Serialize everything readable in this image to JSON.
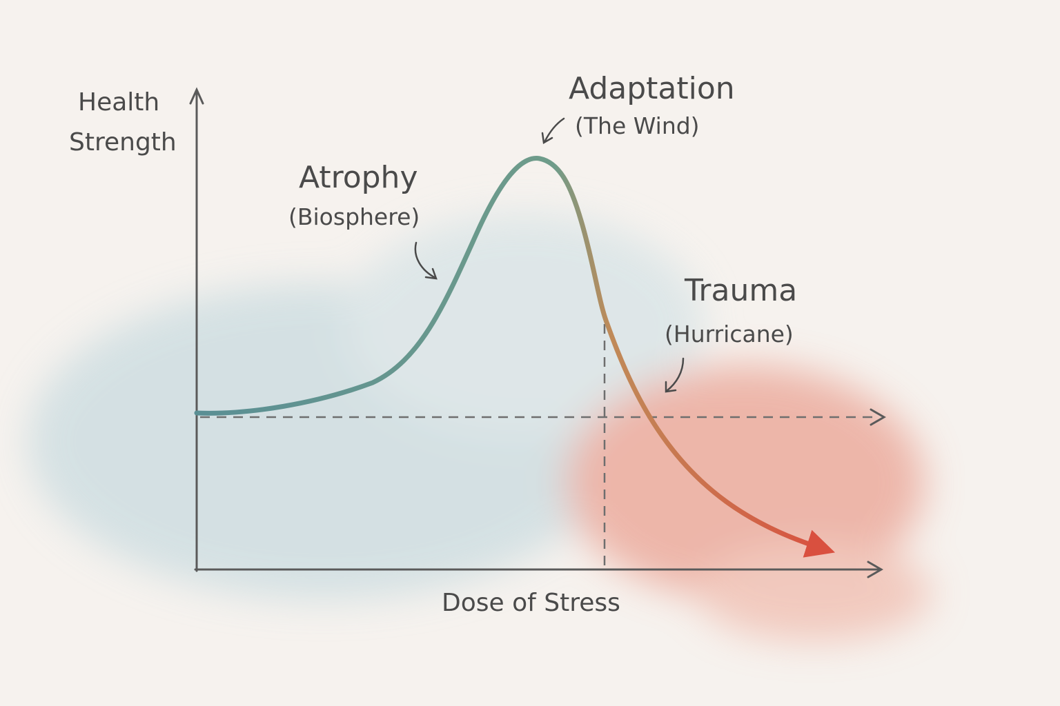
{
  "axes": {
    "y_label_line1": "Health",
    "y_label_line2": "Strength",
    "x_label": "Dose of Stress"
  },
  "annotations": {
    "adaptation": {
      "title": "Adaptation",
      "subtitle": "(The Wind)"
    },
    "atrophy": {
      "title": "Atrophy",
      "subtitle": "(Biosphere)"
    },
    "trauma": {
      "title": "Trauma",
      "subtitle": "(Hurricane)"
    }
  },
  "colors": {
    "curve_start": "#5a8f94",
    "curve_mid": "#6f9c8a",
    "curve_end": "#d9503f",
    "wash_blue": "#c9dbe0",
    "wash_red": "#eaa293"
  }
}
